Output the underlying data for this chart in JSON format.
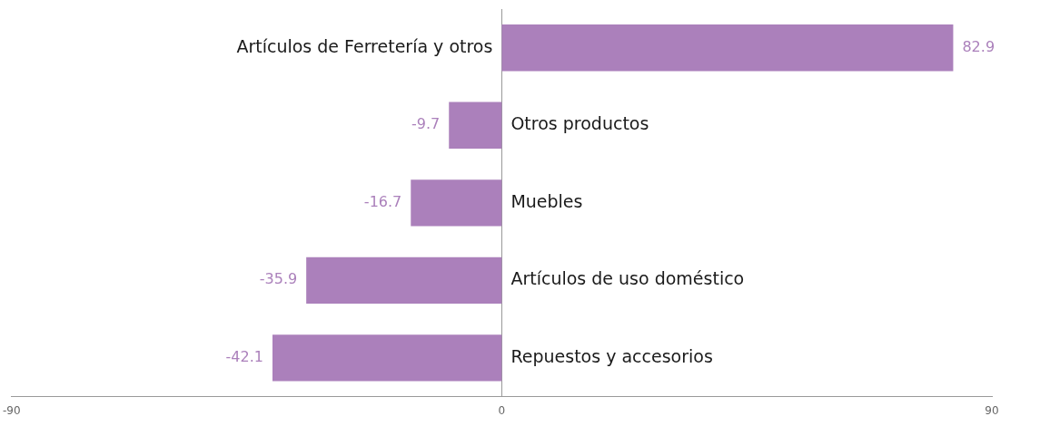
{
  "chart_data": {
    "type": "bar",
    "orientation": "horizontal",
    "categories": [
      "Artículos de Ferretería y otros",
      "Otros productos",
      "Muebles",
      "Artículos de uso doméstico",
      "Repuestos y accesorios"
    ],
    "values": [
      82.9,
      -9.7,
      -16.7,
      -35.9,
      -42.1
    ],
    "color": "#ab80bb",
    "xlim": [
      -90,
      90
    ],
    "xticks": [
      -90,
      0,
      90
    ],
    "data_labels": true,
    "grid": false,
    "legend": false
  }
}
